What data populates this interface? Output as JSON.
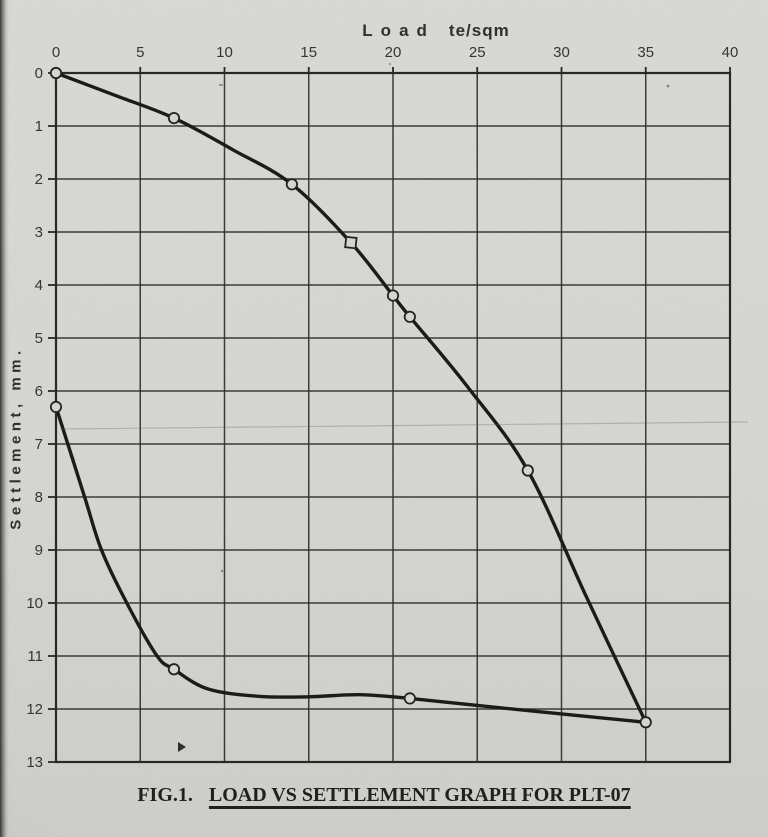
{
  "chart_data": {
    "type": "line",
    "caption": {
      "fig": "FIG.1.",
      "title": "LOAD VS SETTLEMENT GRAPH FOR PLT-07"
    },
    "x_axis": {
      "word": "Load",
      "unit": "te/sqm",
      "position": "top",
      "min": 0,
      "max": 40,
      "ticks": [
        0,
        5,
        10,
        15,
        20,
        25,
        30,
        35,
        40
      ]
    },
    "y_axis": {
      "label": "Settlement, mm.",
      "position": "left",
      "min": 0,
      "max": 13,
      "direction": "down",
      "ticks": [
        0,
        1,
        2,
        3,
        4,
        5,
        6,
        7,
        8,
        9,
        10,
        11,
        12,
        13
      ]
    },
    "grid": "both",
    "legend": "none",
    "series": [
      {
        "name": "loading-curve",
        "color": "#181714",
        "points": [
          {
            "x": 0,
            "y": 0,
            "marker": "circle"
          },
          {
            "x": 7,
            "y": 0.85,
            "marker": "circle"
          },
          {
            "x": 14,
            "y": 2.1,
            "marker": "circle"
          },
          {
            "x": 17.5,
            "y": 3.2,
            "marker": "square"
          },
          {
            "x": 20,
            "y": 4.2,
            "marker": "circle"
          },
          {
            "x": 21,
            "y": 4.6,
            "marker": "circle"
          },
          {
            "x": 28,
            "y": 7.5,
            "marker": "circle"
          },
          {
            "x": 35,
            "y": 12.25,
            "marker": "circle"
          }
        ],
        "shape": [
          [
            0,
            0
          ],
          [
            3.5,
            0.42
          ],
          [
            7,
            0.85
          ],
          [
            10.5,
            1.45
          ],
          [
            14,
            2.1
          ],
          [
            17.5,
            3.2
          ],
          [
            20,
            4.2
          ],
          [
            21,
            4.6
          ],
          [
            24.5,
            5.95
          ],
          [
            28,
            7.5
          ],
          [
            31.5,
            9.9
          ],
          [
            35,
            12.25
          ]
        ]
      },
      {
        "name": "unloading-curve",
        "color": "#181714",
        "points": [
          {
            "x": 35,
            "y": 12.25,
            "marker": "none"
          },
          {
            "x": 21,
            "y": 11.8,
            "marker": "circle"
          },
          {
            "x": 7,
            "y": 11.25,
            "marker": "circle"
          },
          {
            "x": 0,
            "y": 6.3,
            "marker": "circle"
          }
        ],
        "shape": [
          [
            0,
            6.3
          ],
          [
            1.7,
            8.0
          ],
          [
            2.7,
            9.0
          ],
          [
            4.2,
            10.0
          ],
          [
            6.0,
            11.0
          ],
          [
            7,
            11.25
          ],
          [
            9,
            11.62
          ],
          [
            12,
            11.76
          ],
          [
            15,
            11.77
          ],
          [
            18,
            11.73
          ],
          [
            21,
            11.8
          ],
          [
            28,
            12.03
          ],
          [
            35,
            12.25
          ]
        ]
      }
    ]
  }
}
